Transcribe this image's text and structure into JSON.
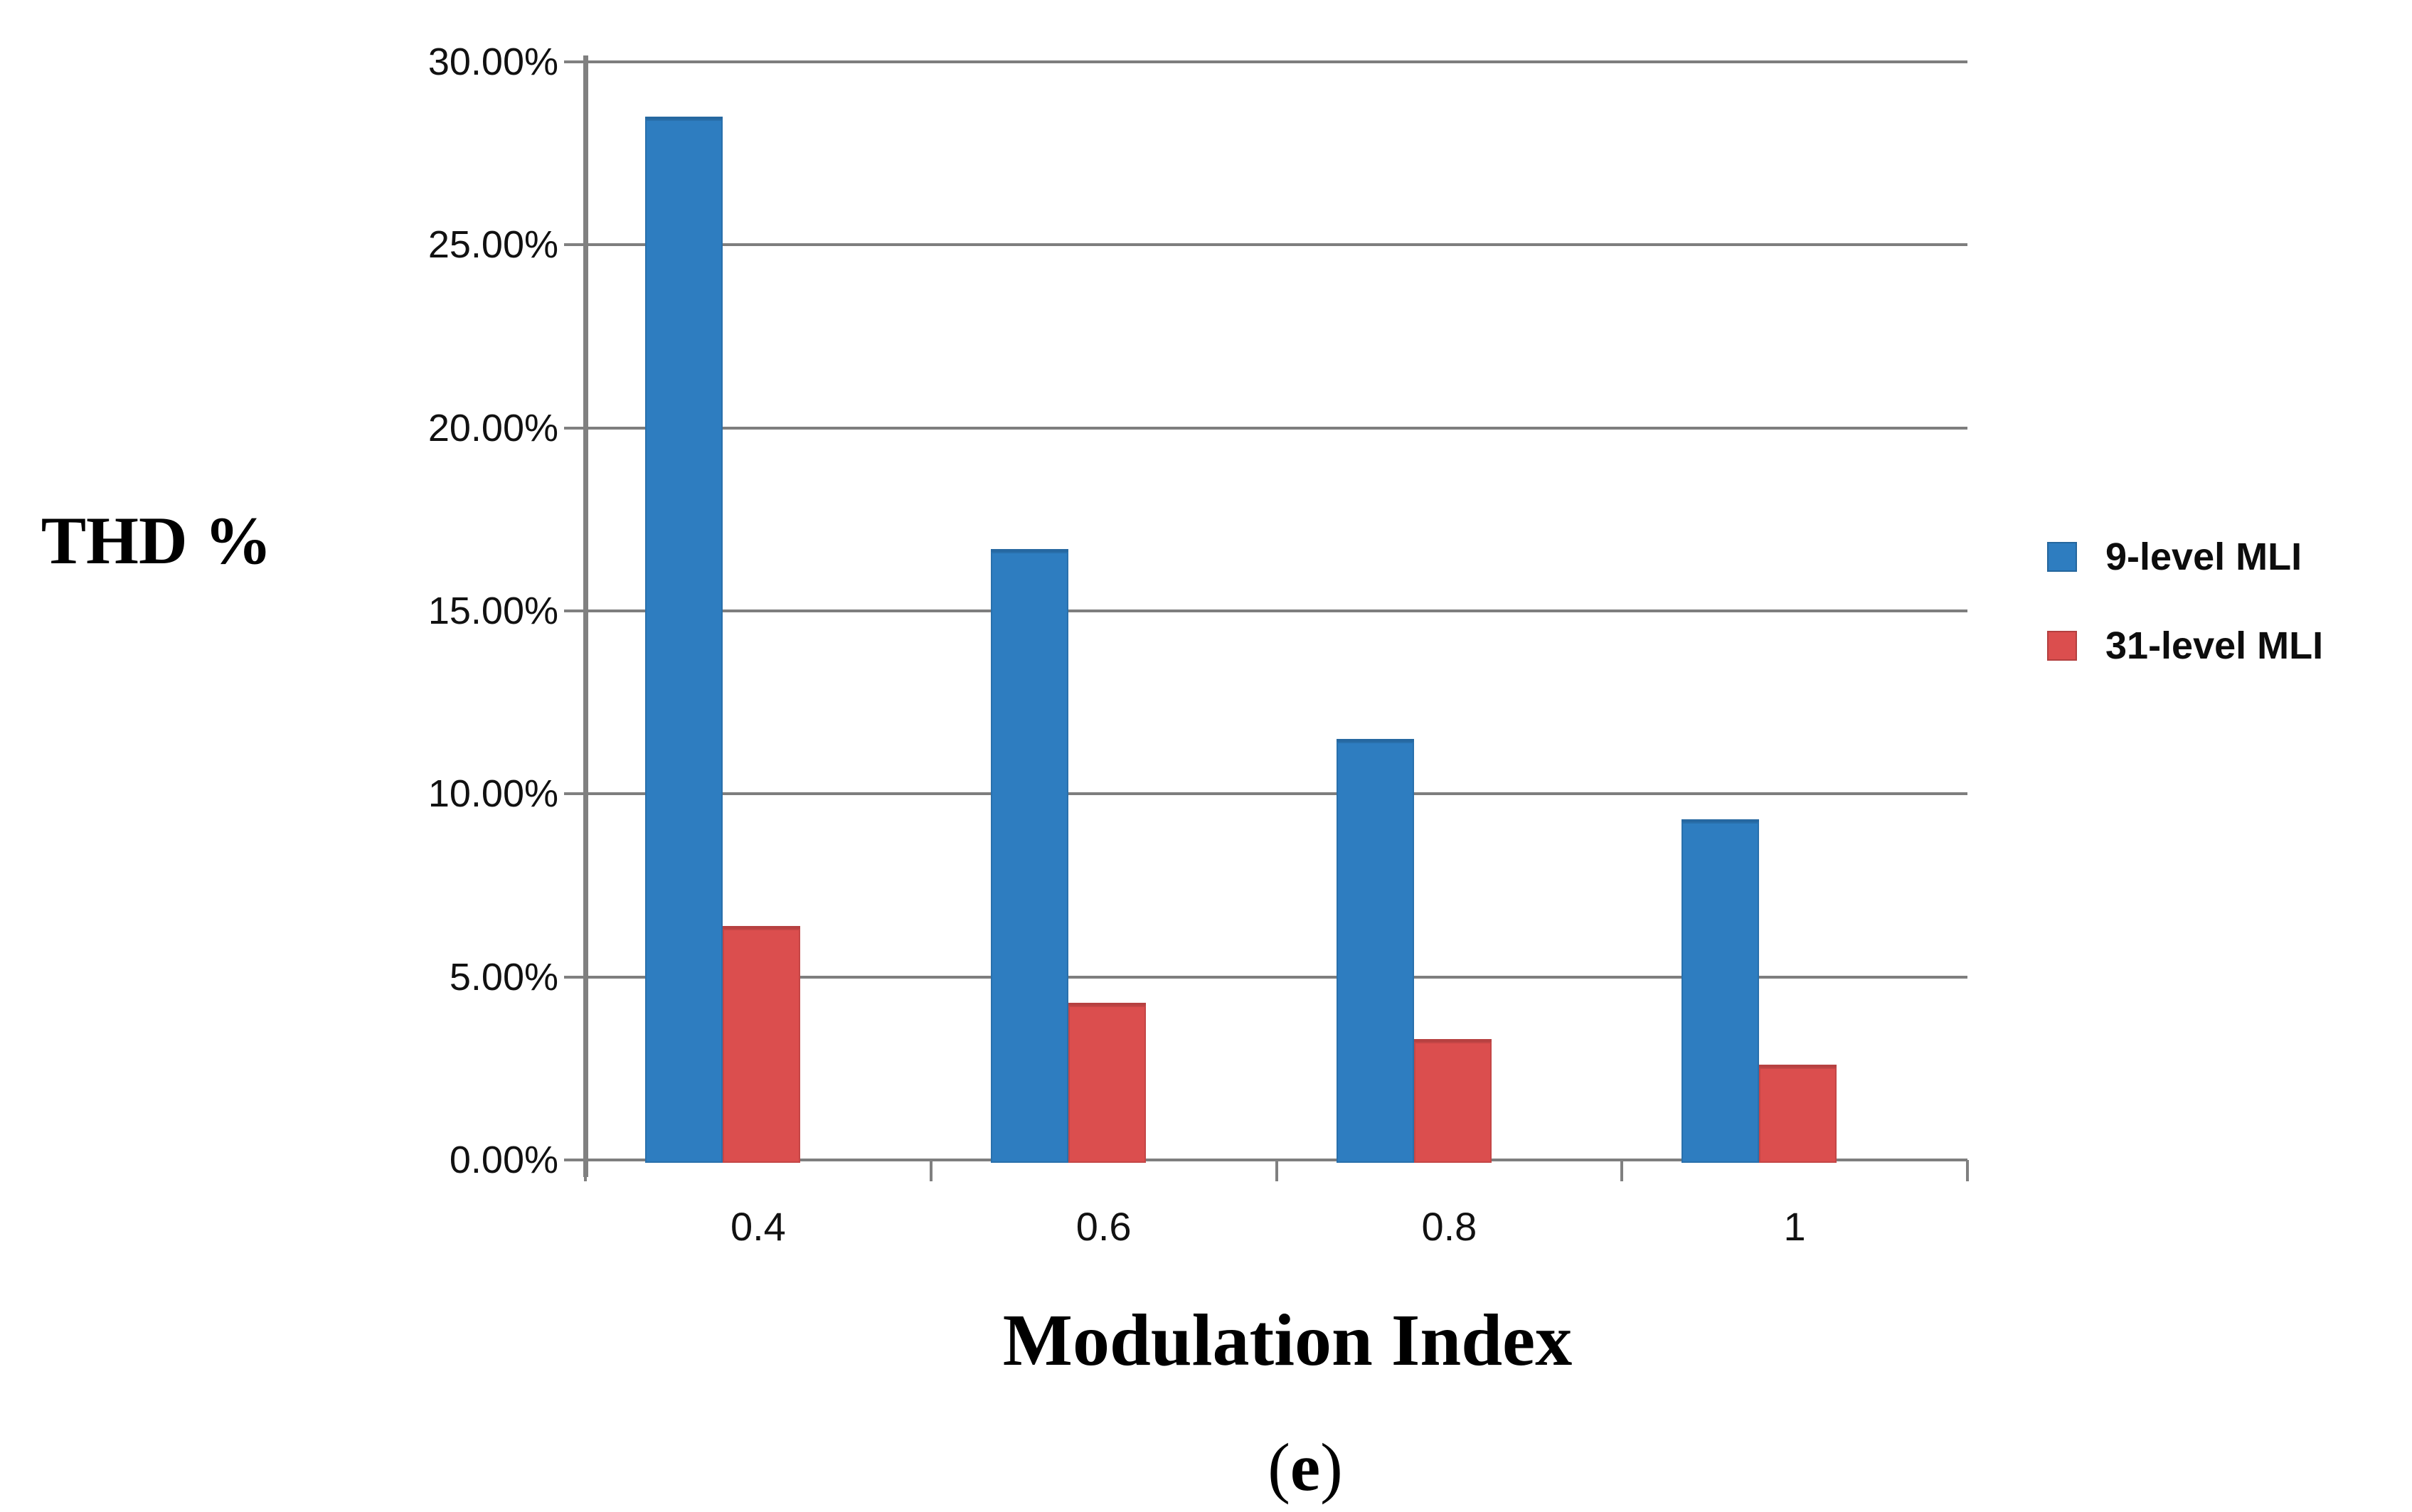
{
  "figure": {
    "y_axis_title": "THD %",
    "x_axis_title": "Modulation Index",
    "caption": {
      "prefix": "(",
      "letter": "e",
      "suffix": ")"
    }
  },
  "chart_data": {
    "type": "bar",
    "title": "",
    "xlabel": "Modulation Index",
    "ylabel": "THD %",
    "categories": [
      "0.4",
      "0.6",
      "0.8",
      "1"
    ],
    "series": [
      {
        "name": "9-level MLI",
        "color": "#2e7dc0",
        "values_pct": [
          28.5,
          16.7,
          11.5,
          9.3
        ]
      },
      {
        "name": "31-level MLI",
        "color": "#db4e4e",
        "values_pct": [
          6.4,
          4.3,
          3.3,
          2.6
        ]
      }
    ],
    "ylim": [
      0,
      30
    ],
    "y_tick_step": 5,
    "y_tick_labels": [
      "30.00%",
      "25.00%",
      "20.00%",
      "15.00%",
      "10.00%",
      "5.00%",
      "0.00%"
    ],
    "grid": true,
    "legend_position": "right",
    "colors": {
      "gridline": "#7e7e7e",
      "axis": "#808080",
      "text": "#000000"
    }
  }
}
